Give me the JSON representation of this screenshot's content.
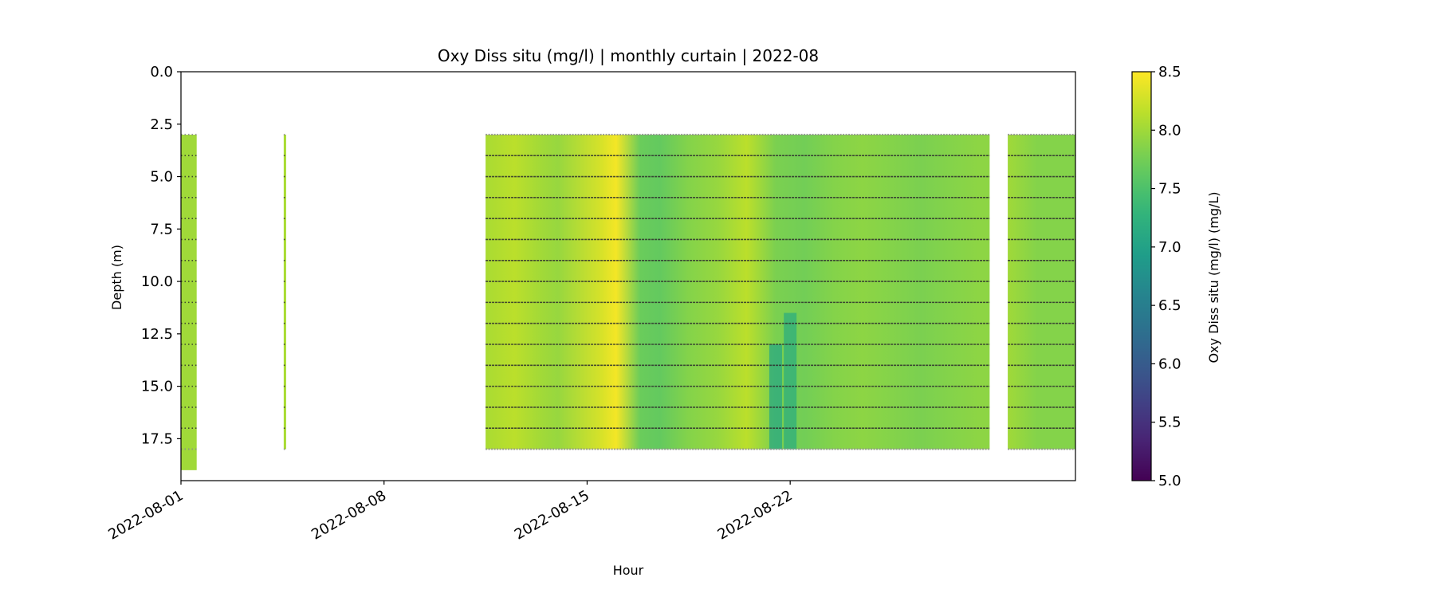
{
  "chart_data": {
    "type": "heatmap",
    "title": "Oxy Diss situ (mg/l) | monthly curtain | 2022-08",
    "xlabel": "Hour",
    "ylabel": "Depth (m)",
    "x_type": "date",
    "xlim": [
      "2022-08-01",
      "2022-08-31 20:00"
    ],
    "xticks": [
      "2022-08-01",
      "2022-08-08",
      "2022-08-15",
      "2022-08-22"
    ],
    "ylim": [
      19.5,
      0
    ],
    "y_inverted": true,
    "yticks": [
      0.0,
      2.5,
      5.0,
      7.5,
      10.0,
      12.5,
      15.0,
      17.5
    ],
    "ytick_labels": [
      "0.0",
      "2.5",
      "5.0",
      "7.5",
      "10.0",
      "12.5",
      "15.0",
      "17.5"
    ],
    "grid": false,
    "colorbar": {
      "label": "Oxy Diss situ (mg/l) (mg/L)",
      "colormap": "viridis",
      "range": [
        5.0,
        8.5
      ],
      "ticks": [
        5.0,
        5.5,
        6.0,
        6.5,
        7.0,
        7.5,
        8.0,
        8.5
      ],
      "tick_labels": [
        "5.0",
        "5.5",
        "6.0",
        "6.5",
        "7.0",
        "7.5",
        "8.0",
        "8.5"
      ]
    },
    "sample_depths": [
      3,
      4,
      5,
      6,
      7,
      8,
      9,
      10,
      11,
      12,
      13,
      14,
      15,
      16,
      17,
      18
    ],
    "blocks": [
      {
        "start": "2022-08-01 00:00",
        "end": "2022-08-01 13:00",
        "depth_top": 3.0,
        "depth_bottom": 19.0,
        "mean_value": 8.0
      },
      {
        "start": "2022-08-04 13:00",
        "end": "2022-08-04 15:00",
        "depth_top": 3.0,
        "depth_bottom": 18.0,
        "mean_value": 8.05
      },
      {
        "start": "2022-08-11 12:00",
        "end": "2022-08-28 21:00",
        "depth_top": 3.0,
        "depth_bottom": 18.0,
        "mean_value": 7.85
      },
      {
        "start": "2022-08-29 12:00",
        "end": "2022-08-31 20:00",
        "depth_top": 3.0,
        "depth_bottom": 18.0,
        "mean_value": 7.9
      }
    ],
    "column_means": [
      {
        "date": "2022-08-11 12:00",
        "value": 8.05
      },
      {
        "date": "2022-08-12 12:00",
        "value": 8.15
      },
      {
        "date": "2022-08-13 12:00",
        "value": 8.0
      },
      {
        "date": "2022-08-14 00:00",
        "value": 7.95
      },
      {
        "date": "2022-08-15 12:00",
        "value": 8.3
      },
      {
        "date": "2022-08-16 00:00",
        "value": 8.45
      },
      {
        "date": "2022-08-16 20:00",
        "value": 7.7
      },
      {
        "date": "2022-08-17 12:00",
        "value": 7.65
      },
      {
        "date": "2022-08-18 12:00",
        "value": 7.85
      },
      {
        "date": "2022-08-19 12:00",
        "value": 7.95
      },
      {
        "date": "2022-08-20 12:00",
        "value": 8.15
      },
      {
        "date": "2022-08-21 12:00",
        "value": 7.8
      },
      {
        "date": "2022-08-22 12:00",
        "value": 7.75
      },
      {
        "date": "2022-08-23 12:00",
        "value": 7.85
      },
      {
        "date": "2022-08-24 12:00",
        "value": 7.9
      },
      {
        "date": "2022-08-25 12:00",
        "value": 7.85
      },
      {
        "date": "2022-08-26 12:00",
        "value": 7.8
      },
      {
        "date": "2022-08-27 12:00",
        "value": 7.85
      },
      {
        "date": "2022-08-28 12:00",
        "value": 7.9
      },
      {
        "date": "2022-08-29 12:00",
        "value": 8.0
      },
      {
        "date": "2022-08-30 12:00",
        "value": 7.85
      },
      {
        "date": "2022-08-31 12:00",
        "value": 7.85
      }
    ],
    "low_features": [
      {
        "date": "2022-08-21 12:00",
        "depth_top": 13.0,
        "depth_bottom": 18.0,
        "value": 7.1
      },
      {
        "date": "2022-08-22 00:00",
        "depth_top": 11.5,
        "depth_bottom": 18.0,
        "value": 7.2
      }
    ]
  },
  "colors": {
    "axes": "#000000",
    "sample_marker": "#3a3a3a",
    "depth_line": "#2f2f2f",
    "boundary_marker": "#8c8c8c"
  }
}
